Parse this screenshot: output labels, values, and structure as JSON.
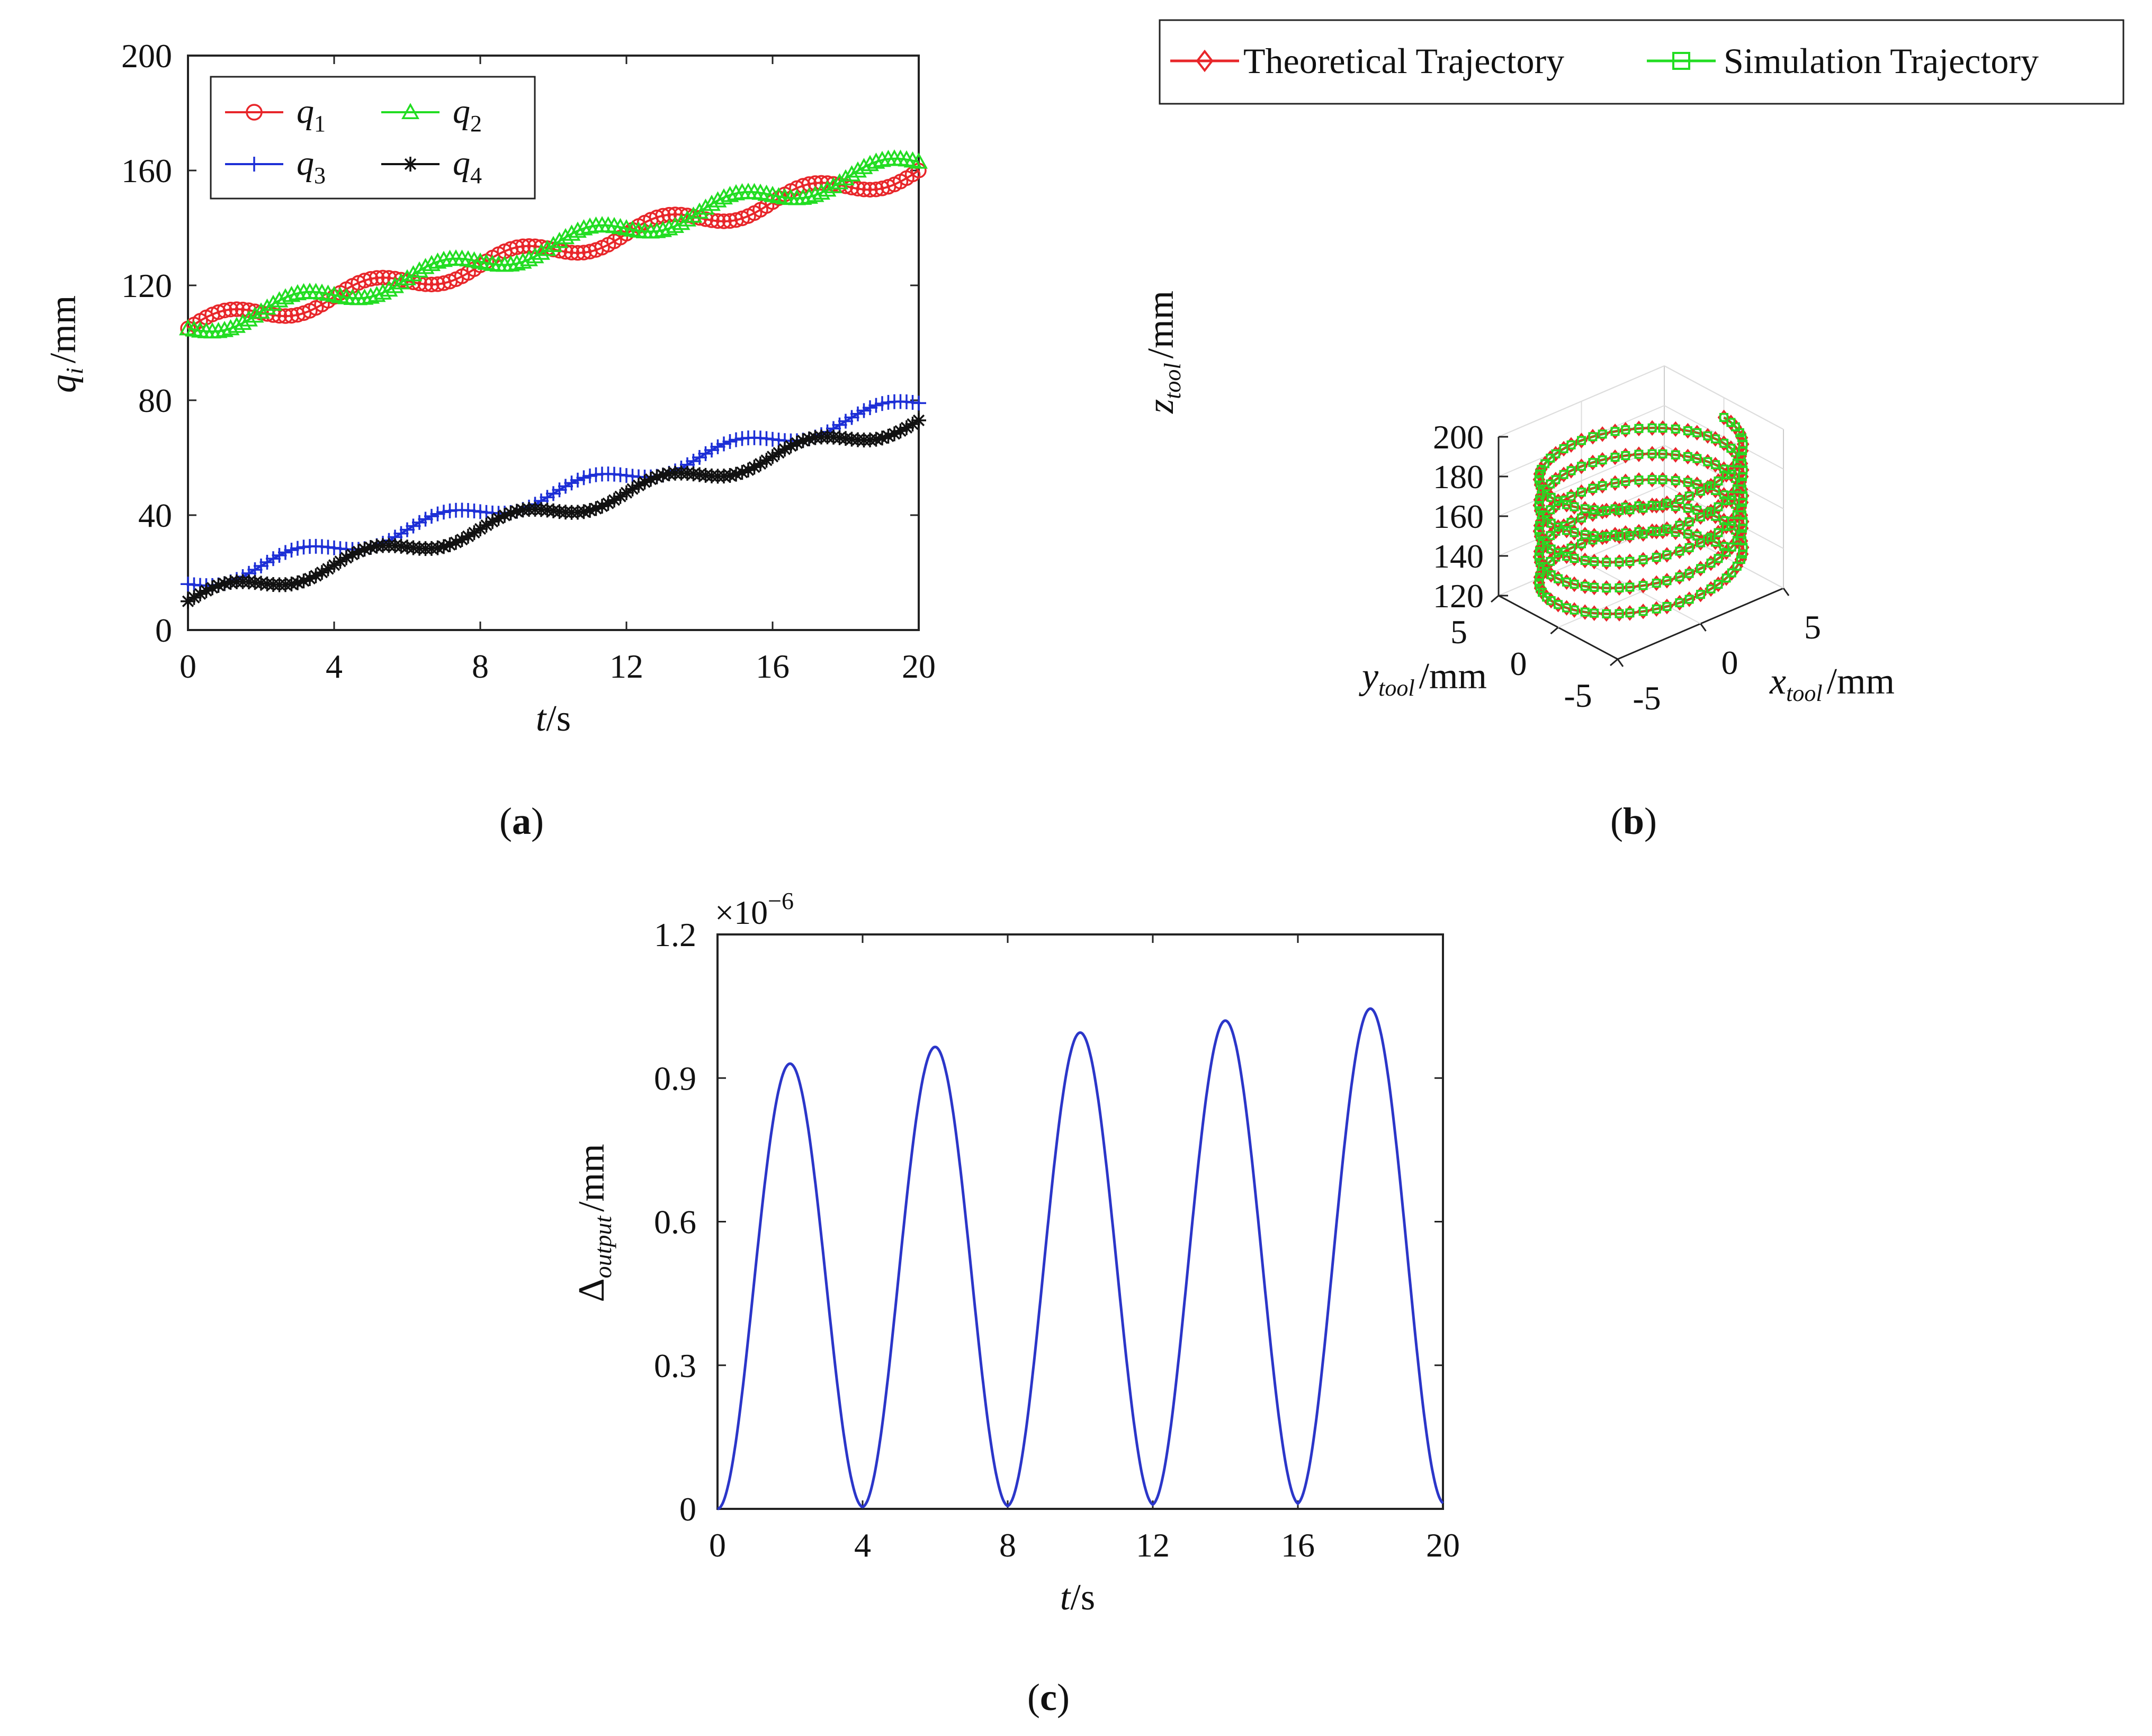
{
  "chart_data": [
    {
      "id": "a",
      "type": "line",
      "caption": "a",
      "xlabel": {
        "main": "t",
        "unit": "/s"
      },
      "ylabel": {
        "main": "q",
        "sub": "i",
        "unit": "/mm"
      },
      "xlim": [
        0,
        20
      ],
      "ylim": [
        0,
        200
      ],
      "xticks": [
        0,
        4,
        8,
        12,
        16,
        20
      ],
      "yticks": [
        0,
        40,
        80,
        120,
        160,
        200
      ],
      "legend": {
        "placement": "top-left"
      },
      "series": [
        {
          "name": "q",
          "sub": "1",
          "color": "#e8262a",
          "marker": "circle",
          "start": 105,
          "end": 160,
          "amp": 3.5,
          "period": 4,
          "phase": 0
        },
        {
          "name": "q",
          "sub": "2",
          "color": "#22dd22",
          "marker": "triangle",
          "start": 105,
          "end": 163,
          "amp": 3.5,
          "period": 4,
          "phase": 3.14159
        },
        {
          "name": "q",
          "sub": "3",
          "color": "#1d2fd6",
          "marker": "plus",
          "start": 16,
          "end": 79,
          "amp": 3,
          "period": 4,
          "phase": 3.14159
        },
        {
          "name": "q",
          "sub": "4",
          "color": "#111111",
          "marker": "star",
          "start": 10,
          "end": 73,
          "amp": 3,
          "period": 4,
          "phase": 0
        }
      ]
    },
    {
      "id": "b",
      "type": "line",
      "caption": "b",
      "xlabel": {
        "main": "x",
        "sub": "tool",
        "unit": "/mm"
      },
      "ylabel": {
        "main": "y",
        "sub": "tool",
        "unit": "/mm"
      },
      "zlabel": {
        "main": "z",
        "sub": "tool",
        "unit": "/mm"
      },
      "zticks": [
        120,
        140,
        160,
        180,
        200
      ],
      "xticks": [
        -5,
        0,
        5
      ],
      "yticks": [
        -5,
        0,
        5
      ],
      "zlim": [
        120,
        200
      ],
      "helix": {
        "radius": 5,
        "z_start": 125,
        "z_end": 190,
        "turns": 5
      },
      "legend": {
        "placement": "top"
      },
      "series": [
        {
          "name": "Theoretical Trajectory",
          "color": "#e8262a",
          "marker": "diamond"
        },
        {
          "name": "Simulation Trajectory",
          "color": "#22dd22",
          "marker": "square"
        }
      ]
    },
    {
      "id": "c",
      "type": "line",
      "caption": "c",
      "xlabel": {
        "main": "t",
        "unit": "/s"
      },
      "ylabel": {
        "main": "Δ",
        "sub": "output",
        "unit": "/mm"
      },
      "exponent": "×10",
      "exponent_power": "−6",
      "xlim": [
        0,
        20
      ],
      "ylim": [
        0,
        1.2
      ],
      "xticks": [
        0,
        4,
        8,
        12,
        16,
        20
      ],
      "yticks": [
        0,
        0.3,
        0.6,
        0.9,
        1.2
      ],
      "ytick_labels": [
        "0",
        "0.3",
        "0.6",
        "0.9",
        "1.2"
      ],
      "color": "#2b36c9",
      "peaks": [
        {
          "t": 2,
          "v": 0.93
        },
        {
          "t": 6,
          "v": 0.965
        },
        {
          "t": 10,
          "v": 0.995
        },
        {
          "t": 14,
          "v": 1.02
        },
        {
          "t": 18,
          "v": 1.045
        }
      ],
      "troughs": [
        {
          "t": 0,
          "v": 0
        },
        {
          "t": 4,
          "v": 0.02
        },
        {
          "t": 8,
          "v": 0.03
        },
        {
          "t": 12,
          "v": 0.045
        },
        {
          "t": 16,
          "v": 0.055
        },
        {
          "t": 20,
          "v": 0.06
        }
      ]
    }
  ]
}
